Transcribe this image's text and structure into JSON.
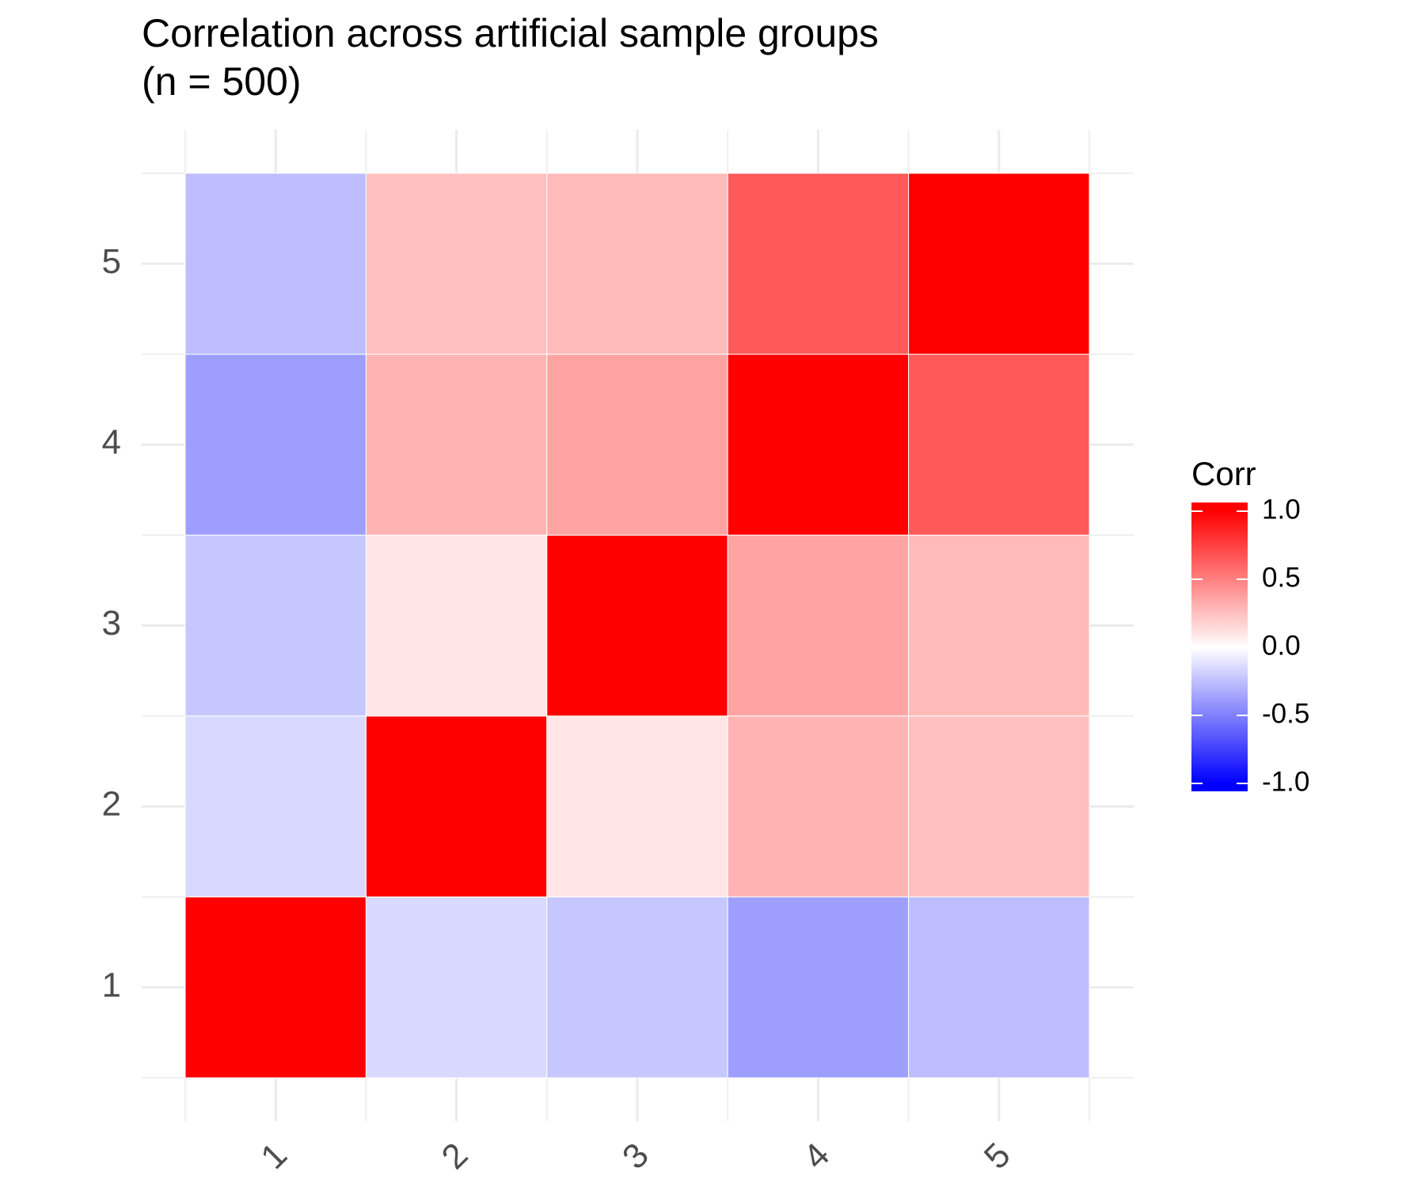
{
  "chart_data": {
    "type": "heatmap",
    "title": "Correlation across artificial sample groups",
    "subtitle": "(n = 500)",
    "x_categories": [
      "1",
      "2",
      "3",
      "4",
      "5"
    ],
    "y_categories": [
      "1",
      "2",
      "3",
      "4",
      "5"
    ],
    "values": [
      [
        1,
        -0.15,
        -0.22,
        -0.38,
        -0.26
      ],
      [
        -0.15,
        1,
        0.1,
        0.3,
        0.25
      ],
      [
        -0.22,
        0.1,
        1,
        0.36,
        0.27
      ],
      [
        -0.38,
        0.3,
        0.36,
        1,
        0.65
      ],
      [
        -0.26,
        0.25,
        0.27,
        0.65,
        1
      ]
    ],
    "colorscale": {
      "low": "#0000ff",
      "mid": "#ffffff",
      "high": "#ff0000"
    },
    "zlim": [
      -1,
      1
    ],
    "legend_title": "Corr",
    "legend_ticks": [
      {
        "value": -1,
        "label": "-1.0"
      },
      {
        "value": -0.5,
        "label": "-0.5"
      },
      {
        "value": 0,
        "label": "0.0"
      },
      {
        "value": 0.5,
        "label": "0.5"
      },
      {
        "value": 1,
        "label": "1.0"
      }
    ],
    "grid": true
  }
}
